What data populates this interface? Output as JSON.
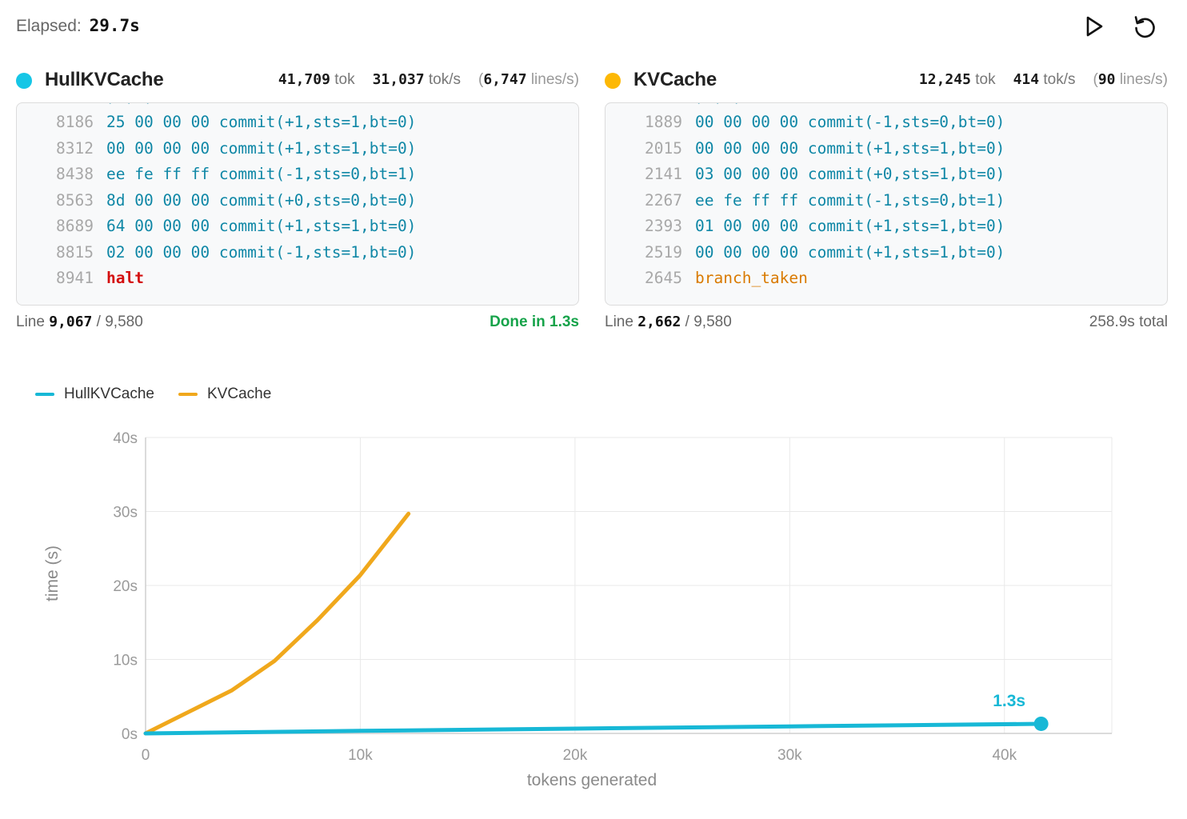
{
  "header": {
    "elapsed_label": "Elapsed:",
    "elapsed_value": "29.7s",
    "play_icon": "play-icon",
    "reset_icon": "reset-icon"
  },
  "panels": [
    {
      "name": "HullKVCache",
      "color": "#16c6e6",
      "tok": "41,709",
      "tok_unit": "tok",
      "tok_s": "31,037",
      "tok_s_unit": "tok/s",
      "lines_s": "6,747",
      "lines_s_unit": "lines/s",
      "lines": [
        {
          "n": "8186",
          "text": "25 00 00 00 commit(+1,sts=1,bt=0)",
          "kind": "normal"
        },
        {
          "n": "8312",
          "text": "00 00 00 00 commit(+1,sts=1,bt=0)",
          "kind": "normal"
        },
        {
          "n": "8438",
          "text": "ee fe ff ff commit(-1,sts=0,bt=1)",
          "kind": "normal"
        },
        {
          "n": "8563",
          "text": "8d 00 00 00 commit(+0,sts=0,bt=0)",
          "kind": "normal"
        },
        {
          "n": "8689",
          "text": "64 00 00 00 commit(+1,sts=1,bt=0)",
          "kind": "normal"
        },
        {
          "n": "8815",
          "text": "02 00 00 00 commit(-1,sts=1,bt=0)",
          "kind": "normal"
        },
        {
          "n": "8941",
          "text": "halt",
          "kind": "halt"
        }
      ],
      "footer_line_label": "Line",
      "footer_line": "9,067",
      "footer_total": "/ 9,580",
      "footer_status": "Done in 1.3s"
    },
    {
      "name": "KVCache",
      "color": "#fdb805",
      "tok": "12,245",
      "tok_unit": "tok",
      "tok_s": "414",
      "tok_s_unit": "tok/s",
      "lines_s": "90",
      "lines_s_unit": "lines/s",
      "lines": [
        {
          "n": "1889",
          "text": "00 00 00 00 commit(-1,sts=0,bt=0)",
          "kind": "normal"
        },
        {
          "n": "2015",
          "text": "00 00 00 00 commit(+1,sts=1,bt=0)",
          "kind": "normal"
        },
        {
          "n": "2141",
          "text": "03 00 00 00 commit(+0,sts=1,bt=0)",
          "kind": "normal"
        },
        {
          "n": "2267",
          "text": "ee fe ff ff commit(-1,sts=0,bt=1)",
          "kind": "normal"
        },
        {
          "n": "2393",
          "text": "01 00 00 00 commit(+1,sts=1,bt=0)",
          "kind": "normal"
        },
        {
          "n": "2519",
          "text": "00 00 00 00 commit(+1,sts=1,bt=0)",
          "kind": "normal"
        },
        {
          "n": "2645",
          "text": "branch_taken",
          "kind": "branch"
        }
      ],
      "footer_line_label": "Line",
      "footer_line": "2,662",
      "footer_total": "/ 9,580",
      "footer_status": "258.9s total"
    }
  ],
  "chart_data": {
    "type": "line",
    "xlabel": "tokens generated",
    "ylabel": "time (s)",
    "xlim": [
      0,
      45000
    ],
    "ylim": [
      0,
      40
    ],
    "x_ticks": [
      0,
      10000,
      20000,
      30000,
      40000
    ],
    "x_tick_labels": [
      "0",
      "10k",
      "20k",
      "30k",
      "40k"
    ],
    "y_ticks": [
      0,
      10,
      20,
      30,
      40
    ],
    "y_tick_labels": [
      "0s",
      "10s",
      "20s",
      "30s",
      "40s"
    ],
    "grid": true,
    "legend_position": "top-left",
    "series": [
      {
        "name": "HullKVCache",
        "color": "#17b8d6",
        "x": [
          0,
          10000,
          20000,
          30000,
          41709
        ],
        "y": [
          0,
          0.35,
          0.65,
          0.95,
          1.3
        ],
        "end_label": "1.3s"
      },
      {
        "name": "KVCache",
        "color": "#f0a81c",
        "x": [
          0,
          2000,
          4000,
          6000,
          8000,
          10000,
          12245
        ],
        "y": [
          0,
          2.9,
          5.8,
          9.8,
          15.3,
          21.4,
          29.7
        ]
      }
    ]
  }
}
